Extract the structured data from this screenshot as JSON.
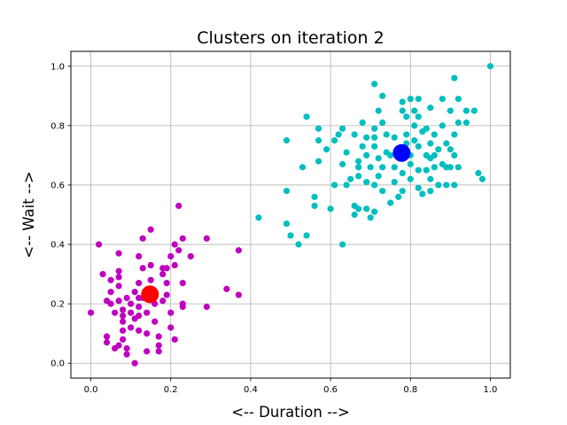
{
  "chart_data": {
    "type": "scatter",
    "title": "Clusters on iteration 2",
    "xlabel": "<-- Duration -->",
    "ylabel": "<-- Wait -->",
    "xlim": [
      -0.05,
      1.05
    ],
    "ylim": [
      -0.05,
      1.05
    ],
    "xticks": [
      "0.0",
      "0.2",
      "0.4",
      "0.6",
      "0.8",
      "1.0"
    ],
    "yticks": [
      "0.0",
      "0.2",
      "0.4",
      "0.6",
      "0.8",
      "1.0"
    ],
    "grid": true,
    "series": [
      {
        "color": "#bf00bf",
        "points": [
          [
            0.0,
            0.17
          ],
          [
            0.02,
            0.4
          ],
          [
            0.03,
            0.3
          ],
          [
            0.04,
            0.21
          ],
          [
            0.04,
            0.09
          ],
          [
            0.04,
            0.07
          ],
          [
            0.05,
            0.24
          ],
          [
            0.05,
            0.28
          ],
          [
            0.05,
            0.2
          ],
          [
            0.06,
            0.17
          ],
          [
            0.06,
            0.05
          ],
          [
            0.07,
            0.37
          ],
          [
            0.07,
            0.31
          ],
          [
            0.07,
            0.29
          ],
          [
            0.07,
            0.26
          ],
          [
            0.07,
            0.21
          ],
          [
            0.07,
            0.06
          ],
          [
            0.08,
            0.18
          ],
          [
            0.08,
            0.16
          ],
          [
            0.08,
            0.14
          ],
          [
            0.08,
            0.11
          ],
          [
            0.08,
            0.08
          ],
          [
            0.09,
            0.22
          ],
          [
            0.09,
            0.05
          ],
          [
            0.09,
            0.03
          ],
          [
            0.1,
            0.2
          ],
          [
            0.1,
            0.17
          ],
          [
            0.1,
            0.12
          ],
          [
            0.11,
            0.24
          ],
          [
            0.11,
            0.15
          ],
          [
            0.11,
            0.0
          ],
          [
            0.12,
            0.36
          ],
          [
            0.12,
            0.27
          ],
          [
            0.12,
            0.22
          ],
          [
            0.12,
            0.19
          ],
          [
            0.12,
            0.16
          ],
          [
            0.12,
            0.11
          ],
          [
            0.13,
            0.42
          ],
          [
            0.13,
            0.32
          ],
          [
            0.13,
            0.22
          ],
          [
            0.14,
            0.17
          ],
          [
            0.14,
            0.1
          ],
          [
            0.14,
            0.04
          ],
          [
            0.15,
            0.45
          ],
          [
            0.15,
            0.33
          ],
          [
            0.15,
            0.28
          ],
          [
            0.16,
            0.24
          ],
          [
            0.16,
            0.2
          ],
          [
            0.16,
            0.14
          ],
          [
            0.17,
            0.09
          ],
          [
            0.17,
            0.06
          ],
          [
            0.17,
            0.04
          ],
          [
            0.18,
            0.32
          ],
          [
            0.18,
            0.3
          ],
          [
            0.18,
            0.21
          ],
          [
            0.19,
            0.32
          ],
          [
            0.19,
            0.27
          ],
          [
            0.19,
            0.23
          ],
          [
            0.2,
            0.36
          ],
          [
            0.2,
            0.17
          ],
          [
            0.2,
            0.12
          ],
          [
            0.21,
            0.4
          ],
          [
            0.21,
            0.33
          ],
          [
            0.21,
            0.08
          ],
          [
            0.22,
            0.53
          ],
          [
            0.22,
            0.38
          ],
          [
            0.23,
            0.42
          ],
          [
            0.23,
            0.27
          ],
          [
            0.23,
            0.2
          ],
          [
            0.23,
            0.19
          ],
          [
            0.25,
            0.36
          ],
          [
            0.29,
            0.42
          ],
          [
            0.29,
            0.19
          ],
          [
            0.34,
            0.25
          ],
          [
            0.37,
            0.38
          ],
          [
            0.37,
            0.23
          ]
        ]
      },
      {
        "color": "#00bfbf",
        "points": [
          [
            0.42,
            0.49
          ],
          [
            0.49,
            0.75
          ],
          [
            0.49,
            0.58
          ],
          [
            0.49,
            0.47
          ],
          [
            0.5,
            0.43
          ],
          [
            0.52,
            0.4
          ],
          [
            0.53,
            0.66
          ],
          [
            0.54,
            0.83
          ],
          [
            0.54,
            0.43
          ],
          [
            0.56,
            0.56
          ],
          [
            0.56,
            0.53
          ],
          [
            0.57,
            0.79
          ],
          [
            0.57,
            0.75
          ],
          [
            0.57,
            0.68
          ],
          [
            0.59,
            0.72
          ],
          [
            0.6,
            0.52
          ],
          [
            0.61,
            0.6
          ],
          [
            0.61,
            0.75
          ],
          [
            0.62,
            0.77
          ],
          [
            0.63,
            0.79
          ],
          [
            0.63,
            0.67
          ],
          [
            0.63,
            0.4
          ],
          [
            0.64,
            0.6
          ],
          [
            0.64,
            0.71
          ],
          [
            0.65,
            0.62
          ],
          [
            0.66,
            0.53
          ],
          [
            0.66,
            0.5
          ],
          [
            0.66,
            0.77
          ],
          [
            0.67,
            0.68
          ],
          [
            0.67,
            0.66
          ],
          [
            0.67,
            0.63
          ],
          [
            0.67,
            0.52
          ],
          [
            0.68,
            0.81
          ],
          [
            0.68,
            0.73
          ],
          [
            0.69,
            0.76
          ],
          [
            0.69,
            0.7
          ],
          [
            0.69,
            0.61
          ],
          [
            0.69,
            0.52
          ],
          [
            0.7,
            0.66
          ],
          [
            0.7,
            0.49
          ],
          [
            0.71,
            0.94
          ],
          [
            0.71,
            0.79
          ],
          [
            0.71,
            0.76
          ],
          [
            0.71,
            0.73
          ],
          [
            0.71,
            0.6
          ],
          [
            0.71,
            0.51
          ],
          [
            0.72,
            0.85
          ],
          [
            0.72,
            0.69
          ],
          [
            0.72,
            0.63
          ],
          [
            0.73,
            0.9
          ],
          [
            0.73,
            0.81
          ],
          [
            0.73,
            0.66
          ],
          [
            0.73,
            0.58
          ],
          [
            0.74,
            0.77
          ],
          [
            0.74,
            0.71
          ],
          [
            0.75,
            0.7
          ],
          [
            0.75,
            0.54
          ],
          [
            0.76,
            0.76
          ],
          [
            0.76,
            0.66
          ],
          [
            0.76,
            0.61
          ],
          [
            0.77,
            0.72
          ],
          [
            0.77,
            0.56
          ],
          [
            0.78,
            0.88
          ],
          [
            0.78,
            0.85
          ],
          [
            0.78,
            0.72
          ],
          [
            0.78,
            0.64
          ],
          [
            0.78,
            0.58
          ],
          [
            0.79,
            0.83
          ],
          [
            0.79,
            0.77
          ],
          [
            0.79,
            0.74
          ],
          [
            0.8,
            0.89
          ],
          [
            0.8,
            0.7
          ],
          [
            0.8,
            0.67
          ],
          [
            0.8,
            0.62
          ],
          [
            0.81,
            0.85
          ],
          [
            0.81,
            0.8
          ],
          [
            0.81,
            0.75
          ],
          [
            0.82,
            0.89
          ],
          [
            0.82,
            0.83
          ],
          [
            0.82,
            0.73
          ],
          [
            0.82,
            0.65
          ],
          [
            0.82,
            0.59
          ],
          [
            0.83,
            0.78
          ],
          [
            0.83,
            0.57
          ],
          [
            0.84,
            0.79
          ],
          [
            0.84,
            0.7
          ],
          [
            0.84,
            0.65
          ],
          [
            0.85,
            0.86
          ],
          [
            0.85,
            0.74
          ],
          [
            0.85,
            0.69
          ],
          [
            0.85,
            0.62
          ],
          [
            0.85,
            0.58
          ],
          [
            0.86,
            0.77
          ],
          [
            0.86,
            0.7
          ],
          [
            0.86,
            0.66
          ],
          [
            0.87,
            0.72
          ],
          [
            0.87,
            0.6
          ],
          [
            0.88,
            0.89
          ],
          [
            0.88,
            0.8
          ],
          [
            0.88,
            0.67
          ],
          [
            0.89,
            0.74
          ],
          [
            0.89,
            0.66
          ],
          [
            0.89,
            0.6
          ],
          [
            0.9,
            0.85
          ],
          [
            0.9,
            0.72
          ],
          [
            0.9,
            0.66
          ],
          [
            0.91,
            0.96
          ],
          [
            0.91,
            0.77
          ],
          [
            0.91,
            0.7
          ],
          [
            0.91,
            0.6
          ],
          [
            0.92,
            0.89
          ],
          [
            0.92,
            0.81
          ],
          [
            0.92,
            0.66
          ],
          [
            0.94,
            0.85
          ],
          [
            0.94,
            0.81
          ],
          [
            0.96,
            0.85
          ],
          [
            0.97,
            0.64
          ],
          [
            0.98,
            0.62
          ],
          [
            1.0,
            1.0
          ]
        ]
      }
    ],
    "centroids": [
      {
        "x": 0.148,
        "y": 0.232,
        "color": "#ff0000"
      },
      {
        "x": 0.778,
        "y": 0.708,
        "color": "#0000ff"
      }
    ]
  }
}
